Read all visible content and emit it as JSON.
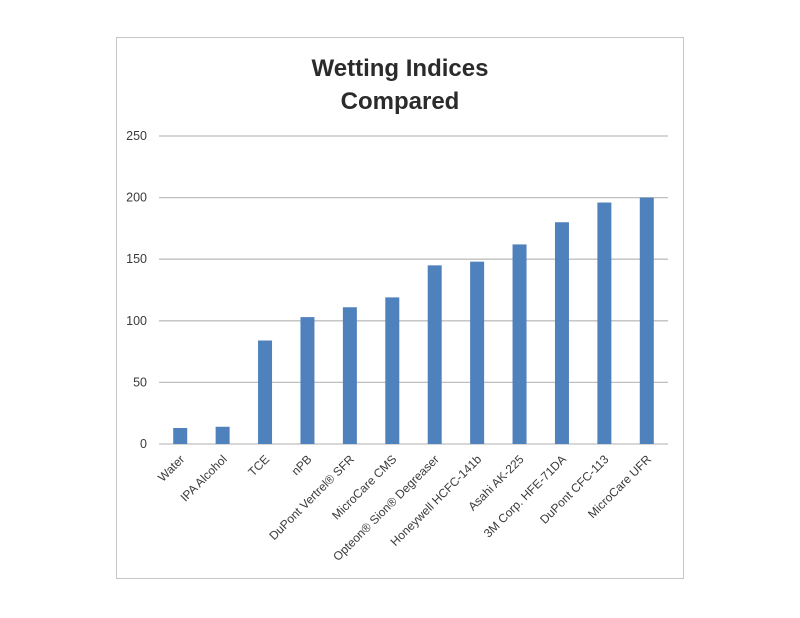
{
  "chart_data": {
    "type": "bar",
    "title_lines": [
      "Wetting Indices",
      "Compared"
    ],
    "categories": [
      "Water",
      "IPA Alcohol",
      "TCE",
      "nPB",
      "DuPont Vertrel® SFR",
      "MicroCare CMS",
      "Opteon® Sion® Degreaser",
      "Honeywell HCFC-141b",
      "Asahi     AK-225",
      "3M Corp.  HFE-71DA",
      "DuPont CFC-113",
      "MicroCare UFR"
    ],
    "values": [
      13,
      14,
      84,
      103,
      111,
      119,
      145,
      148,
      162,
      180,
      196,
      200
    ],
    "ylim": [
      0,
      250
    ],
    "yticks": [
      0,
      50,
      100,
      150,
      200,
      250
    ],
    "grid": true,
    "legend": "none",
    "bar_color": "#4f81bd",
    "grid_color": "#bfbfbf"
  }
}
